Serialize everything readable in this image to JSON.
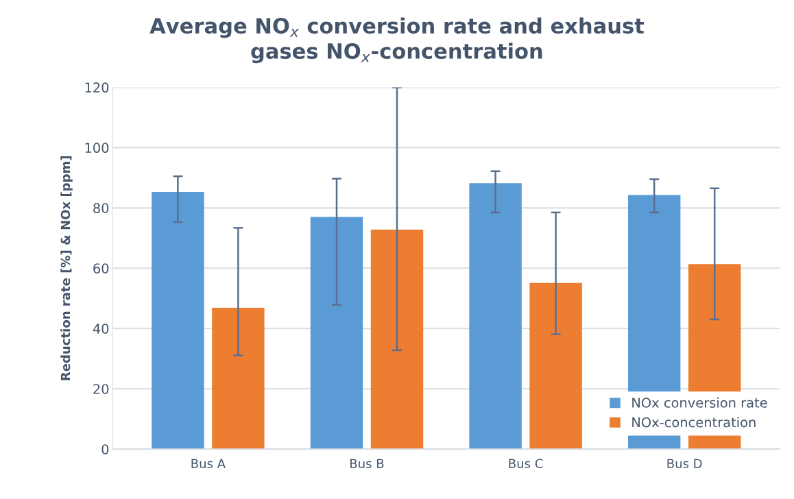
{
  "chart_data": {
    "type": "bar",
    "title": "Average NO$_{x}$ conversion rate and exhaust\ngases NO$_{x}$-concentration",
    "ylabel": "Reduction rate [%] & NOx [ppm]",
    "categories": [
      "Bus A",
      "Bus B",
      "Bus C",
      "Bus D"
    ],
    "series": [
      {
        "name": "NOx conversion rate",
        "color": "#5b9bd5",
        "values": [
          85.3,
          77.0,
          88.2,
          84.3
        ],
        "errors": [
          [
            75.3,
            90.5
          ],
          [
            47.8,
            89.7
          ],
          [
            78.5,
            92.2
          ],
          [
            78.5,
            89.5
          ]
        ]
      },
      {
        "name": "NOx-concentration",
        "color": "#ed7d31",
        "values": [
          46.9,
          72.8,
          55.1,
          61.4
        ],
        "errors": [
          [
            31.1,
            73.4
          ],
          [
            32.8,
            120
          ],
          [
            38.1,
            78.5
          ],
          [
            43.0,
            86.5
          ]
        ]
      }
    ],
    "ylim": [
      0,
      120
    ],
    "yticks": [
      0,
      20,
      40,
      60,
      80,
      100,
      120
    ],
    "grid": "y",
    "legend": "bottom right"
  }
}
